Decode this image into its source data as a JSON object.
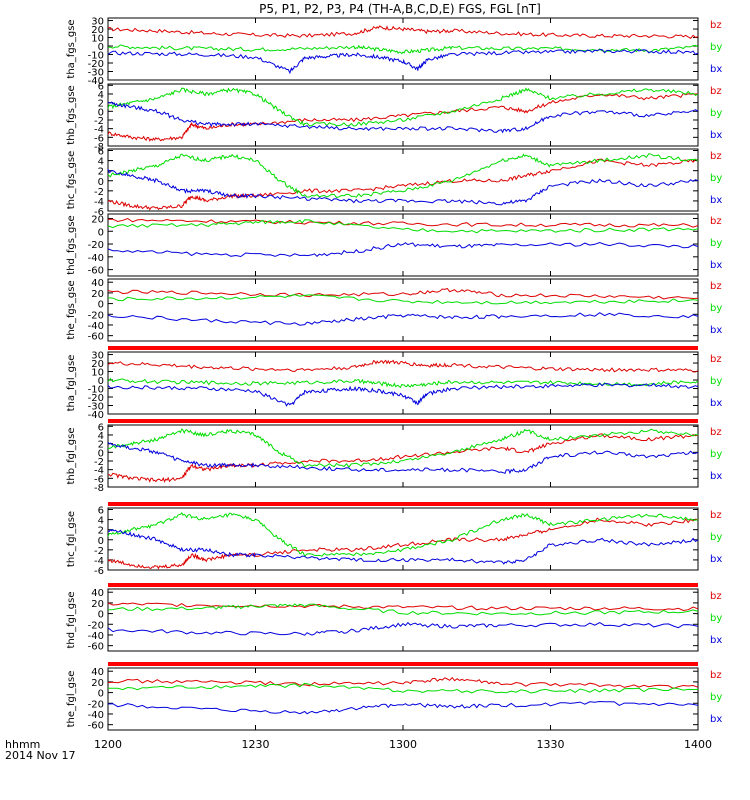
{
  "title": "P5, P1, P2, P3, P4 (TH-A,B,C,D,E) FGS, FGL [nT]",
  "colors": {
    "bx": "#0000dd",
    "by": "#00dd00",
    "bz": "#dd0000",
    "axis": "#000000",
    "flag": "#ff0000"
  },
  "x_axis": {
    "label_line1": "hhmm",
    "label_line2": "2014 Nov 17",
    "ticks": [
      {
        "t": 0,
        "label": "1200"
      },
      {
        "t": 30,
        "label": "1230"
      },
      {
        "t": 60,
        "label": "1300"
      },
      {
        "t": 90,
        "label": "1330"
      },
      {
        "t": 120,
        "label": "1400"
      }
    ],
    "range_minutes": [
      0,
      120
    ]
  },
  "chart_data": [
    {
      "type": "line",
      "ylabel": "tha_fgs_gse",
      "ylim": [
        -40,
        33
      ],
      "yticks": [
        30,
        20,
        10,
        0,
        -10,
        -20,
        -30,
        -40
      ],
      "legend": [
        "bz",
        "by",
        "bx"
      ],
      "series": [
        {
          "name": "bz",
          "x": [
            0,
            10,
            20,
            30,
            40,
            50,
            55,
            60,
            65,
            70,
            80,
            90,
            100,
            110,
            120
          ],
          "y": [
            20,
            18,
            15,
            13,
            12,
            15,
            22,
            20,
            17,
            18,
            15,
            13,
            12,
            12,
            11
          ]
        },
        {
          "name": "by",
          "x": [
            0,
            10,
            20,
            30,
            40,
            50,
            55,
            60,
            65,
            70,
            80,
            90,
            100,
            110,
            120
          ],
          "y": [
            0,
            -2,
            -3,
            -4,
            -3,
            -1,
            -4,
            -7,
            -5,
            -2,
            -3,
            -3,
            -4,
            -5,
            -1
          ]
        },
        {
          "name": "bx",
          "x": [
            0,
            10,
            20,
            30,
            37,
            40,
            45,
            50,
            55,
            60,
            63,
            65,
            70,
            80,
            90,
            100,
            110,
            120
          ],
          "y": [
            -8,
            -9,
            -10,
            -13,
            -30,
            -14,
            -12,
            -10,
            -13,
            -18,
            -27,
            -16,
            -10,
            -8,
            -7,
            -6,
            -6,
            -8
          ]
        }
      ]
    },
    {
      "type": "line",
      "ylabel": "thb_fgs_gse",
      "ylim": [
        -8,
        6.3
      ],
      "yticks": [
        6,
        4,
        2,
        0,
        -2,
        -4,
        -6,
        -8
      ],
      "legend": [
        "bz",
        "by",
        "bx"
      ],
      "series": [
        {
          "name": "bz",
          "x": [
            0,
            5,
            10,
            15,
            17,
            20,
            25,
            30,
            40,
            50,
            60,
            70,
            80,
            85,
            90,
            100,
            110,
            120
          ],
          "y": [
            -5,
            -6,
            -6.5,
            -6,
            -3,
            -4,
            -3,
            -3,
            -2,
            -2,
            -1,
            0,
            1,
            0,
            2,
            4,
            3,
            4
          ]
        },
        {
          "name": "by",
          "x": [
            0,
            5,
            10,
            15,
            20,
            25,
            30,
            35,
            40,
            50,
            60,
            70,
            80,
            85,
            90,
            100,
            110,
            120
          ],
          "y": [
            1,
            2,
            3,
            5,
            4,
            5,
            4,
            0,
            -3,
            -3,
            -2,
            0,
            3,
            5,
            3,
            4,
            5,
            4
          ]
        },
        {
          "name": "bx",
          "x": [
            0,
            5,
            10,
            15,
            20,
            25,
            30,
            40,
            50,
            60,
            70,
            80,
            85,
            90,
            100,
            110,
            120
          ],
          "y": [
            2,
            1,
            0,
            -2,
            -3,
            -3,
            -3,
            -3.5,
            -4,
            -4,
            -4,
            -4.5,
            -4,
            -1,
            0,
            -1,
            0
          ]
        }
      ]
    },
    {
      "type": "line",
      "ylabel": "thc_fgs_gse",
      "ylim": [
        -6,
        6.3
      ],
      "yticks": [
        6,
        4,
        2,
        0,
        -2,
        -4,
        -6
      ],
      "legend": [
        "bz",
        "by",
        "bx"
      ],
      "series": [
        {
          "name": "bz",
          "x": [
            0,
            5,
            10,
            15,
            17,
            20,
            25,
            30,
            40,
            50,
            60,
            70,
            80,
            85,
            90,
            100,
            110,
            120
          ],
          "y": [
            -4,
            -5,
            -5.5,
            -5,
            -3,
            -4,
            -3,
            -3,
            -2,
            -2,
            -1,
            0,
            0,
            1,
            2,
            4,
            3,
            4
          ]
        },
        {
          "name": "by",
          "x": [
            0,
            5,
            10,
            15,
            20,
            25,
            30,
            35,
            40,
            50,
            60,
            70,
            80,
            85,
            90,
            100,
            110,
            120
          ],
          "y": [
            1,
            2,
            3,
            5,
            4,
            5,
            4,
            0,
            -3,
            -3,
            -2,
            0,
            4,
            5,
            3,
            4,
            5,
            4
          ]
        },
        {
          "name": "bx",
          "x": [
            0,
            5,
            10,
            15,
            20,
            25,
            30,
            40,
            50,
            60,
            70,
            80,
            85,
            90,
            100,
            110,
            120
          ],
          "y": [
            2,
            1,
            0,
            -2,
            -2,
            -3,
            -3,
            -3.5,
            -4,
            -4,
            -4,
            -4.5,
            -4,
            -1,
            0,
            -1,
            0
          ]
        }
      ]
    },
    {
      "type": "line",
      "ylabel": "thd_fgs_gse",
      "ylim": [
        -70,
        27
      ],
      "yticks": [
        20,
        0,
        -20,
        -40,
        -60
      ],
      "legend": [
        "bz",
        "by",
        "bx"
      ],
      "series": [
        {
          "name": "bz",
          "x": [
            0,
            20,
            40,
            60,
            80,
            100,
            120
          ],
          "y": [
            18,
            16,
            14,
            12,
            10,
            10,
            9
          ]
        },
        {
          "name": "by",
          "x": [
            0,
            20,
            30,
            40,
            60,
            80,
            100,
            120
          ],
          "y": [
            8,
            10,
            14,
            16,
            2,
            0,
            2,
            4
          ]
        },
        {
          "name": "bx",
          "x": [
            0,
            20,
            40,
            50,
            60,
            70,
            80,
            100,
            120
          ],
          "y": [
            -30,
            -36,
            -38,
            -32,
            -20,
            -24,
            -22,
            -20,
            -24
          ]
        }
      ]
    },
    {
      "type": "line",
      "ylabel": "the_fgs_gse",
      "ylim": [
        -70,
        46
      ],
      "yticks": [
        40,
        20,
        0,
        -20,
        -40,
        -60
      ],
      "legend": [
        "bz",
        "by",
        "bx"
      ],
      "series": [
        {
          "name": "bz",
          "x": [
            0,
            20,
            40,
            60,
            70,
            80,
            100,
            120
          ],
          "y": [
            22,
            20,
            16,
            18,
            26,
            16,
            14,
            10
          ]
        },
        {
          "name": "by",
          "x": [
            0,
            20,
            40,
            60,
            80,
            100,
            120
          ],
          "y": [
            8,
            10,
            14,
            4,
            2,
            4,
            6
          ]
        },
        {
          "name": "bx",
          "x": [
            0,
            20,
            40,
            50,
            60,
            70,
            80,
            100,
            120
          ],
          "y": [
            -22,
            -32,
            -38,
            -30,
            -22,
            -26,
            -24,
            -20,
            -24
          ]
        }
      ]
    },
    {
      "type": "line",
      "ylabel": "tha_fgl_gse",
      "ylim": [
        -40,
        33
      ],
      "yticks": [
        30,
        20,
        10,
        0,
        -10,
        -20,
        -30,
        -40
      ],
      "legend": [
        "bz",
        "by",
        "bx"
      ],
      "series": [
        {
          "name": "bz",
          "x": [
            0,
            10,
            20,
            30,
            40,
            50,
            55,
            60,
            65,
            70,
            80,
            90,
            100,
            110,
            120
          ],
          "y": [
            20,
            18,
            15,
            13,
            12,
            15,
            22,
            20,
            17,
            18,
            15,
            13,
            12,
            12,
            11
          ]
        },
        {
          "name": "by",
          "x": [
            0,
            10,
            20,
            30,
            40,
            50,
            55,
            60,
            65,
            70,
            80,
            90,
            100,
            110,
            120
          ],
          "y": [
            0,
            -2,
            -3,
            -4,
            -3,
            -1,
            -4,
            -7,
            -5,
            -2,
            -3,
            -3,
            -4,
            -5,
            -1
          ]
        },
        {
          "name": "bx",
          "x": [
            0,
            10,
            20,
            30,
            37,
            40,
            45,
            50,
            55,
            60,
            63,
            65,
            70,
            80,
            90,
            100,
            110,
            120
          ],
          "y": [
            -8,
            -9,
            -10,
            -13,
            -30,
            -14,
            -12,
            -10,
            -13,
            -18,
            -27,
            -16,
            -10,
            -8,
            -7,
            -6,
            -6,
            -8
          ]
        }
      ]
    },
    {
      "type": "line",
      "ylabel": "thb_fgl_gse",
      "ylim": [
        -8,
        6.3
      ],
      "yticks": [
        6,
        4,
        2,
        0,
        -2,
        -4,
        -6,
        -8
      ],
      "legend": [
        "bz",
        "by",
        "bx"
      ],
      "series": [
        {
          "name": "bz",
          "x": [
            0,
            5,
            10,
            15,
            17,
            20,
            25,
            30,
            40,
            50,
            60,
            70,
            80,
            85,
            90,
            100,
            110,
            120
          ],
          "y": [
            -5,
            -6,
            -6.5,
            -6,
            -3,
            -4,
            -3,
            -3,
            -2,
            -2,
            -1,
            0,
            1,
            0,
            2,
            4,
            3,
            4
          ]
        },
        {
          "name": "by",
          "x": [
            0,
            5,
            10,
            15,
            20,
            25,
            30,
            35,
            40,
            50,
            60,
            70,
            80,
            85,
            90,
            100,
            110,
            120
          ],
          "y": [
            1,
            2,
            3,
            5,
            4,
            5,
            4,
            0,
            -3,
            -3,
            -2,
            0,
            3,
            5,
            3,
            4,
            5,
            4
          ]
        },
        {
          "name": "bx",
          "x": [
            0,
            5,
            10,
            15,
            20,
            25,
            30,
            40,
            50,
            60,
            70,
            80,
            85,
            90,
            100,
            110,
            120
          ],
          "y": [
            2,
            1,
            0,
            -2,
            -3,
            -3,
            -3,
            -3.5,
            -4,
            -4,
            -4,
            -4.5,
            -4,
            -1,
            0,
            -1,
            0
          ]
        }
      ]
    },
    {
      "type": "line",
      "ylabel": "thc_fgl_gse",
      "ylim": [
        -6,
        6.3
      ],
      "yticks": [
        6,
        4,
        2,
        0,
        -2,
        -4,
        -6
      ],
      "legend": [
        "bz",
        "by",
        "bx"
      ],
      "series": [
        {
          "name": "bz",
          "x": [
            0,
            5,
            10,
            15,
            17,
            20,
            25,
            30,
            40,
            50,
            60,
            70,
            80,
            85,
            90,
            100,
            110,
            120
          ],
          "y": [
            -4,
            -5,
            -5.5,
            -5,
            -3,
            -4,
            -3,
            -3,
            -2,
            -2,
            -1,
            0,
            0,
            1,
            2,
            4,
            3,
            4
          ]
        },
        {
          "name": "by",
          "x": [
            0,
            5,
            10,
            15,
            20,
            25,
            30,
            35,
            40,
            50,
            60,
            70,
            80,
            85,
            90,
            100,
            110,
            120
          ],
          "y": [
            1,
            2,
            3,
            5,
            4,
            5,
            4,
            0,
            -3,
            -3,
            -2,
            0,
            4,
            5,
            3,
            4,
            5,
            4
          ]
        },
        {
          "name": "bx",
          "x": [
            0,
            5,
            10,
            15,
            20,
            25,
            30,
            40,
            50,
            60,
            70,
            80,
            85,
            90,
            100,
            110,
            120
          ],
          "y": [
            2,
            1,
            0,
            -2,
            -2,
            -3,
            -3,
            -3.5,
            -4,
            -4,
            -4,
            -4.5,
            -4,
            -1,
            0,
            -1,
            0
          ]
        }
      ]
    },
    {
      "type": "line",
      "ylabel": "thd_fgl_gse",
      "ylim": [
        -70,
        46
      ],
      "yticks": [
        40,
        20,
        0,
        -20,
        -40,
        -60
      ],
      "legend": [
        "bz",
        "by",
        "bx"
      ],
      "series": [
        {
          "name": "bz",
          "x": [
            0,
            20,
            40,
            60,
            80,
            100,
            120
          ],
          "y": [
            18,
            16,
            14,
            12,
            10,
            10,
            9
          ]
        },
        {
          "name": "by",
          "x": [
            0,
            20,
            30,
            40,
            60,
            80,
            100,
            120
          ],
          "y": [
            8,
            10,
            14,
            16,
            2,
            0,
            2,
            4
          ]
        },
        {
          "name": "bx",
          "x": [
            0,
            20,
            40,
            50,
            60,
            70,
            80,
            100,
            120
          ],
          "y": [
            -30,
            -36,
            -38,
            -32,
            -20,
            -24,
            -22,
            -20,
            -24
          ]
        }
      ]
    },
    {
      "type": "line",
      "ylabel": "the_fgl_gse",
      "ylim": [
        -70,
        46
      ],
      "yticks": [
        40,
        20,
        0,
        -20,
        -40,
        -60
      ],
      "legend": [
        "bz",
        "by",
        "bx"
      ],
      "series": [
        {
          "name": "bz",
          "x": [
            0,
            20,
            40,
            60,
            70,
            80,
            100,
            120
          ],
          "y": [
            22,
            20,
            16,
            18,
            26,
            16,
            14,
            10
          ]
        },
        {
          "name": "by",
          "x": [
            0,
            20,
            40,
            60,
            80,
            100,
            120
          ],
          "y": [
            8,
            10,
            14,
            4,
            2,
            4,
            6
          ]
        },
        {
          "name": "bx",
          "x": [
            0,
            20,
            40,
            50,
            60,
            70,
            80,
            100,
            120
          ],
          "y": [
            -22,
            -32,
            -38,
            -30,
            -22,
            -26,
            -24,
            -20,
            -24
          ]
        }
      ]
    }
  ]
}
